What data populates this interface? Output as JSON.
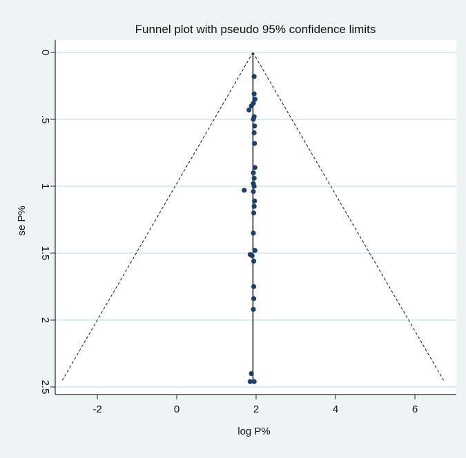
{
  "chart_data": {
    "type": "scatter",
    "title": "Funnel plot with pseudo 95% confidence limits",
    "xlabel": "log P%",
    "ylabel": "se P%",
    "xlim": [
      -2.95,
      6.8
    ],
    "ylim": [
      0,
      2.55
    ],
    "y_reversed": true,
    "x_ticks": [
      -2,
      0,
      2,
      4,
      6
    ],
    "x_tick_labels": [
      "-2",
      "0",
      "2",
      "4",
      "6"
    ],
    "y_ticks": [
      0,
      0.5,
      1,
      1.5,
      2,
      2.5
    ],
    "y_tick_labels": [
      "0",
      ".5",
      "1",
      "1.5",
      "2",
      "2.5"
    ],
    "grid": "horizontal",
    "pooled_estimate": 1.92,
    "confidence_limit_z": 1.96,
    "confidence_limits_se_max": 2.45,
    "colors": {
      "background": "#eef3f6",
      "plot_area": "#ffffff",
      "grid": "#d9e4ea",
      "points": "#1f3f66",
      "lines": "#111111"
    },
    "points": [
      {
        "x": 1.95,
        "y": 0.18
      },
      {
        "x": 1.95,
        "y": 0.31
      },
      {
        "x": 1.97,
        "y": 0.35
      },
      {
        "x": 1.93,
        "y": 0.38
      },
      {
        "x": 1.88,
        "y": 0.4
      },
      {
        "x": 1.82,
        "y": 0.43
      },
      {
        "x": 1.95,
        "y": 0.48
      },
      {
        "x": 1.93,
        "y": 0.5
      },
      {
        "x": 1.96,
        "y": 0.55
      },
      {
        "x": 1.95,
        "y": 0.6
      },
      {
        "x": 1.96,
        "y": 0.68
      },
      {
        "x": 1.97,
        "y": 0.86
      },
      {
        "x": 1.93,
        "y": 0.9
      },
      {
        "x": 1.95,
        "y": 0.94
      },
      {
        "x": 1.93,
        "y": 0.98
      },
      {
        "x": 1.95,
        "y": 1.0
      },
      {
        "x": 1.7,
        "y": 1.03
      },
      {
        "x": 1.93,
        "y": 1.04
      },
      {
        "x": 1.96,
        "y": 1.11
      },
      {
        "x": 1.95,
        "y": 1.15
      },
      {
        "x": 1.94,
        "y": 1.2
      },
      {
        "x": 1.93,
        "y": 1.35
      },
      {
        "x": 1.97,
        "y": 1.48
      },
      {
        "x": 1.85,
        "y": 1.51
      },
      {
        "x": 1.9,
        "y": 1.52
      },
      {
        "x": 1.94,
        "y": 1.56
      },
      {
        "x": 1.94,
        "y": 1.75
      },
      {
        "x": 1.94,
        "y": 1.84
      },
      {
        "x": 1.93,
        "y": 1.92
      },
      {
        "x": 1.88,
        "y": 2.4
      },
      {
        "x": 1.85,
        "y": 2.46
      },
      {
        "x": 1.95,
        "y": 2.46
      }
    ]
  }
}
